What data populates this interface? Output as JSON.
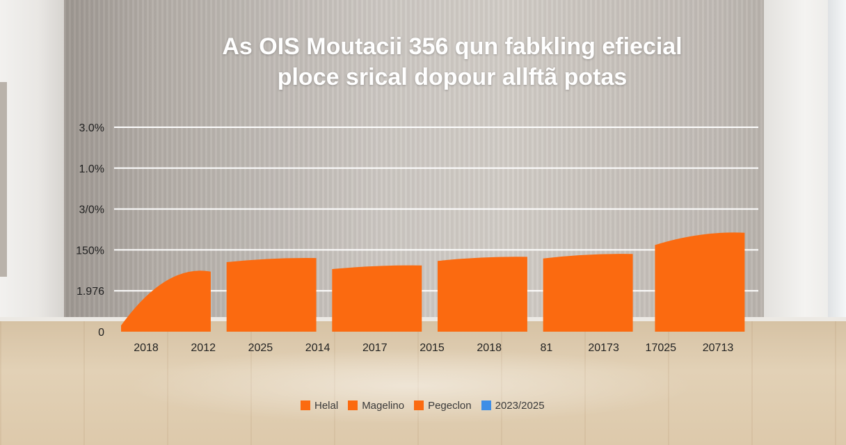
{
  "chart_data": {
    "type": "bar",
    "title": "As OIS Moutacii 356 qun fabkling efiecial",
    "subtitle": "ploce srical dopour allftã potas",
    "y_tick_labels": [
      "0",
      "1.976",
      "150%",
      "3/0%",
      "1.0%",
      "3.0%"
    ],
    "x_tick_labels": [
      "2018",
      "2012",
      "2025",
      "2014",
      "2017",
      "2015",
      "2018",
      "81",
      "20173",
      "17025",
      "20713"
    ],
    "ylim": [
      0,
      5
    ],
    "grid": true,
    "legend_position": "bottom",
    "bar_color": "#fb6a10",
    "bars": [
      {
        "start": 0.15,
        "end": 1.47
      },
      {
        "start": 1.7,
        "end": 1.8
      },
      {
        "start": 1.53,
        "end": 1.62
      },
      {
        "start": 1.73,
        "end": 1.83
      },
      {
        "start": 1.79,
        "end": 1.9
      },
      {
        "start": 2.12,
        "end": 2.42
      }
    ]
  },
  "legend": [
    {
      "label": "Helal",
      "color": "#fb6a10"
    },
    {
      "label": "Magelino",
      "color": "#fb6a10"
    },
    {
      "label": "Pegeclon",
      "color": "#fb6a10"
    },
    {
      "label": "2023/2025",
      "color": "#3f8ee6"
    }
  ]
}
